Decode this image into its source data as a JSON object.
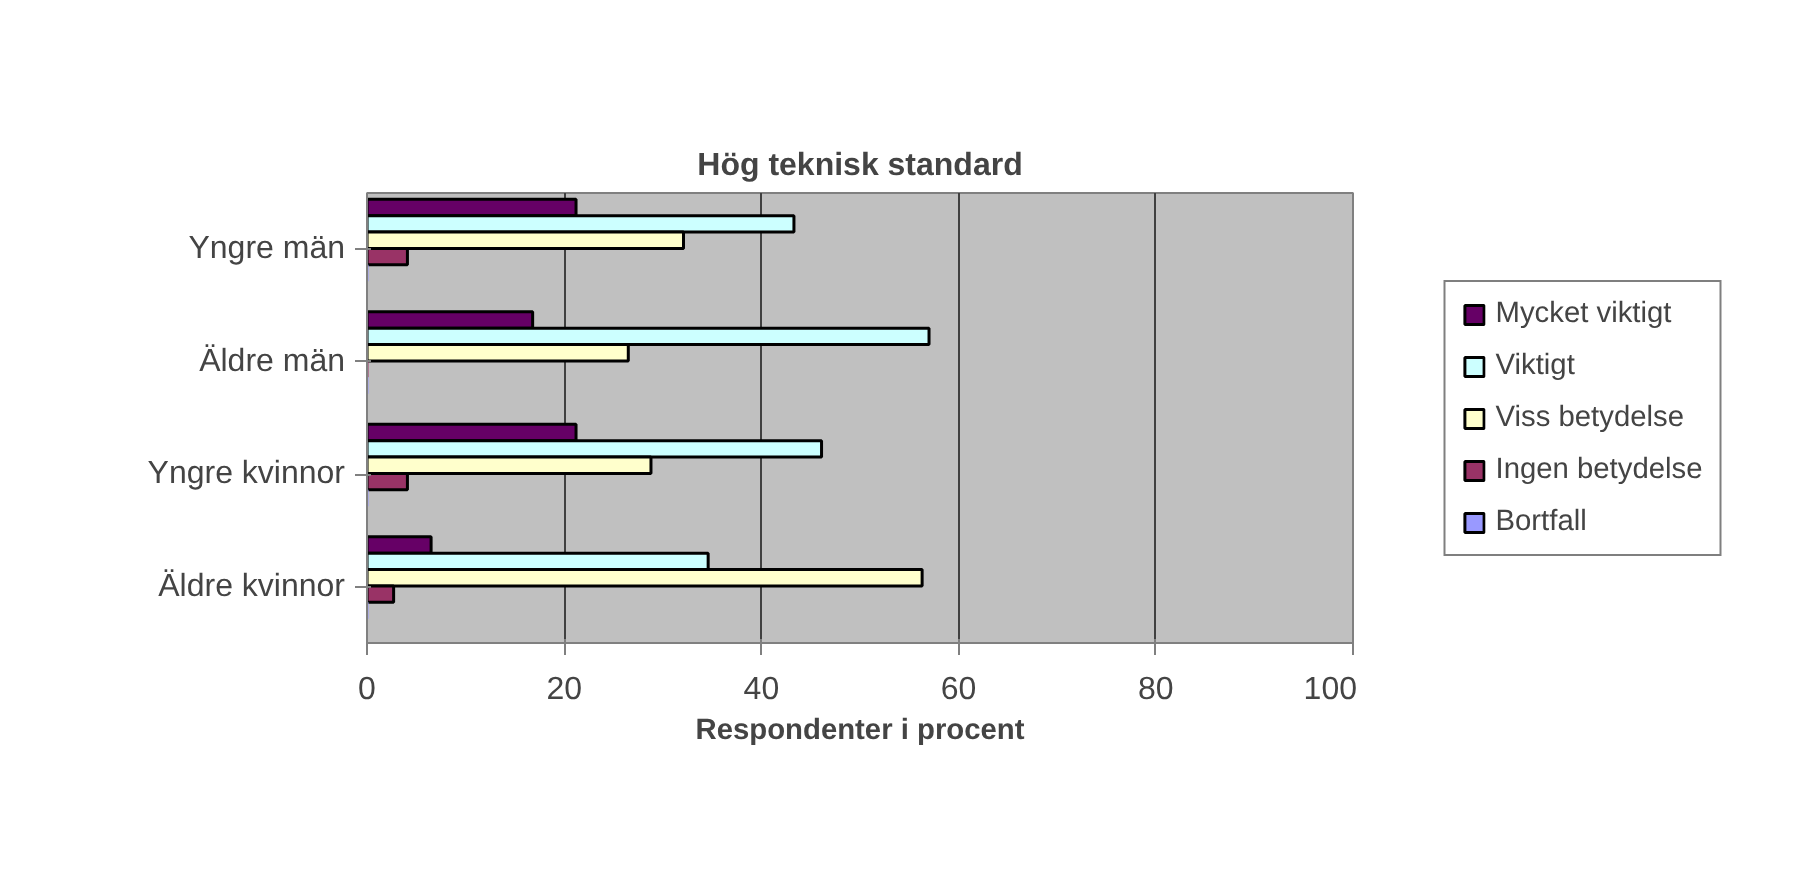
{
  "chart_data": {
    "type": "bar",
    "orientation": "horizontal",
    "title": "Hög teknisk standard",
    "xlabel": "Respondenter i procent",
    "categories": [
      "Yngre män",
      "Äldre män",
      "Yngre kvinnor",
      "Äldre kvinnor"
    ],
    "series": [
      {
        "name": "Mycket viktigt",
        "color": "#660066",
        "values": [
          21.2,
          16.8,
          21.2,
          6.5
        ]
      },
      {
        "name": "Viktigt",
        "color": "#ccffff",
        "values": [
          43.3,
          57.0,
          46.1,
          34.6
        ]
      },
      {
        "name": "Viss betydelse",
        "color": "#ffffcc",
        "values": [
          32.1,
          26.5,
          28.8,
          56.3
        ]
      },
      {
        "name": "Ingen betydelse",
        "color": "#993366",
        "values": [
          4.1,
          0,
          4.1,
          2.7
        ]
      },
      {
        "name": "Bortfall",
        "color": "#9999ff",
        "values": [
          0,
          0,
          0,
          0
        ]
      }
    ],
    "xlim": [
      0,
      100
    ],
    "xticks": [
      0,
      20,
      40,
      60,
      80,
      100
    ],
    "grid": "x",
    "legend": "right"
  }
}
